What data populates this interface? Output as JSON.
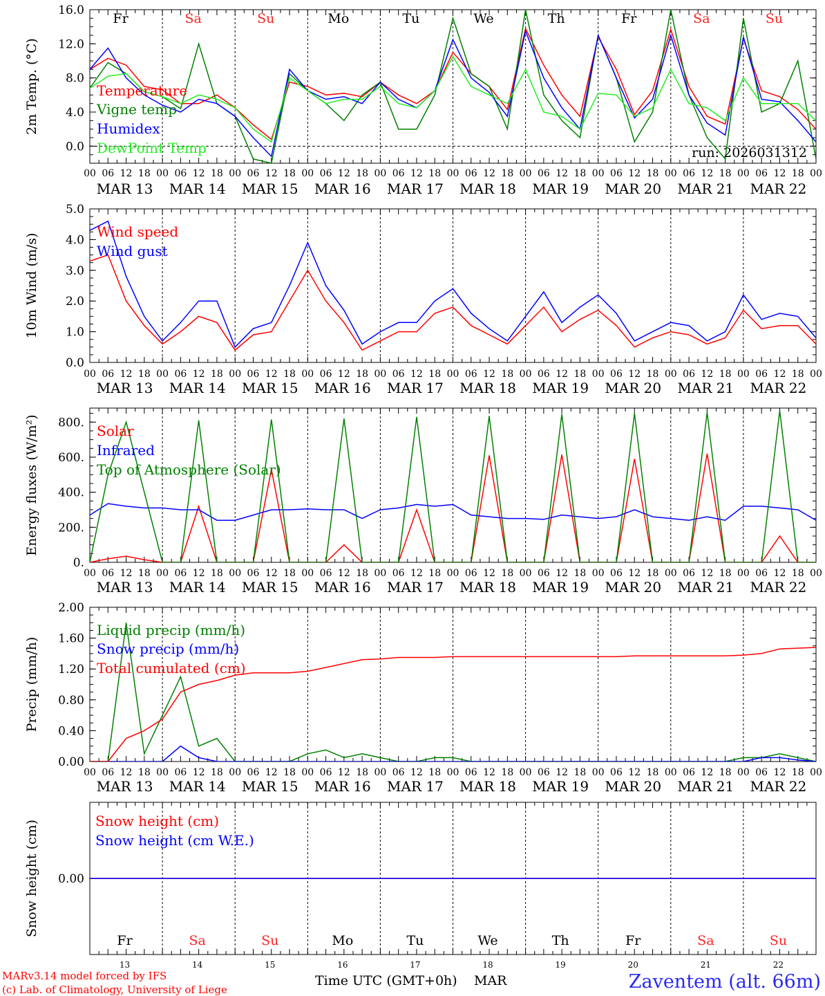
{
  "days": [
    {
      "abbr": "Fr",
      "weekend": false,
      "date": "MAR 13",
      "num": "13"
    },
    {
      "abbr": "Sa",
      "weekend": true,
      "date": "MAR 14",
      "num": "14"
    },
    {
      "abbr": "Su",
      "weekend": true,
      "date": "MAR 15",
      "num": "15"
    },
    {
      "abbr": "Mo",
      "weekend": false,
      "date": "MAR 16",
      "num": "16"
    },
    {
      "abbr": "Tu",
      "weekend": false,
      "date": "MAR 17",
      "num": "17"
    },
    {
      "abbr": "We",
      "weekend": false,
      "date": "MAR 18",
      "num": "18"
    },
    {
      "abbr": "Th",
      "weekend": false,
      "date": "MAR 19",
      "num": "19"
    },
    {
      "abbr": "Fr",
      "weekend": false,
      "date": "MAR 20",
      "num": "20"
    },
    {
      "abbr": "Sa",
      "weekend": true,
      "date": "MAR 21",
      "num": "21"
    },
    {
      "abbr": "Su",
      "weekend": true,
      "date": "MAR 22",
      "num": "22"
    }
  ],
  "hour_labels": [
    "00",
    "06",
    "12",
    "18"
  ],
  "final_hour_label": "00",
  "colors": {
    "red": "#ff0000",
    "green": "#008000",
    "blue": "#0000ff",
    "lightgreen": "#22ee22",
    "weekend": "#ff2222"
  },
  "footer": {
    "model": "MARv3.14 model forced by IFS",
    "lab": "(c) Lab. of Climatology, University of Liege",
    "axis_title": "Time UTC (GMT+0h)",
    "month": "MAR",
    "station": "Zaventem (alt. 66m)"
  },
  "chart_data": [
    {
      "type": "line",
      "ylabel": "2m Temp. (°C)",
      "ylim": [
        -2,
        16
      ],
      "yticks": [
        0,
        4,
        8,
        12,
        16
      ],
      "ytick_labels": [
        "0.0",
        "4.0",
        "8.0",
        "12.0",
        "16.0"
      ],
      "zero_line": true,
      "run_label": "run: 2026031312",
      "x_hours": [
        0,
        6,
        12,
        18,
        24,
        30,
        36,
        42,
        48,
        54,
        60,
        66,
        72,
        78,
        84,
        90,
        96,
        102,
        108,
        114,
        120,
        126,
        132,
        138,
        144,
        150,
        156,
        162,
        168,
        174,
        180,
        186,
        192,
        198,
        204,
        210,
        216,
        222,
        228,
        234,
        240
      ],
      "series": [
        {
          "name": "Temperature",
          "color": "red",
          "values": [
            9,
            10.3,
            9.5,
            7,
            6.6,
            5,
            5,
            6,
            4.5,
            2.5,
            0.8,
            7.5,
            7,
            6,
            6.2,
            5.8,
            7.5,
            6,
            5,
            6.5,
            11,
            8.5,
            7,
            4.3,
            13.8,
            9.5,
            6,
            3.5,
            12.8,
            9,
            3.7,
            6.5,
            13.7,
            7,
            3.5,
            2.6,
            12.6,
            6.5,
            5.8,
            4.3,
            2
          ]
        },
        {
          "name": "Vigne temp",
          "color": "green",
          "values": [
            6.8,
            9.8,
            8.5,
            6.4,
            5.8,
            4.4,
            12,
            5,
            3.5,
            -1.5,
            -2,
            8.5,
            6.5,
            5,
            3,
            6,
            7.5,
            2,
            2,
            6,
            15,
            8.5,
            7,
            2,
            16,
            6,
            3,
            1,
            13,
            8,
            0.5,
            4,
            16,
            6,
            1,
            -1.5,
            15,
            4,
            5,
            10,
            -1.5
          ]
        },
        {
          "name": "Humidex",
          "color": "blue",
          "values": [
            9,
            11.5,
            8,
            6,
            4.8,
            4,
            5.5,
            5,
            3.5,
            1,
            -1.2,
            9,
            6.5,
            5.5,
            5.8,
            5,
            7.5,
            5.5,
            4.5,
            6.5,
            12.5,
            8,
            6.3,
            3.5,
            13.5,
            8,
            4.5,
            2,
            13,
            8,
            3.3,
            5.5,
            13,
            6,
            2.7,
            1.3,
            12.8,
            5.5,
            5.2,
            3,
            0.5
          ]
        },
        {
          "name": "DewPoint Temp",
          "color": "lightgreen",
          "values": [
            6.8,
            8.2,
            8.5,
            6.4,
            5.8,
            5,
            6,
            5.5,
            4.5,
            2,
            0.5,
            8,
            6.5,
            5,
            5.5,
            5.5,
            7,
            5,
            4.5,
            6.5,
            10.5,
            7,
            6,
            5,
            9,
            4,
            3.5,
            2,
            6.2,
            6,
            3.5,
            4.5,
            9,
            5,
            4.5,
            3,
            8,
            5,
            5,
            5,
            3
          ]
        }
      ]
    },
    {
      "type": "line",
      "ylabel": "10m Wind (m/s)",
      "ylim": [
        0,
        5
      ],
      "yticks": [
        0,
        1,
        2,
        3,
        4,
        5
      ],
      "ytick_labels": [
        "0.0",
        "1.0",
        "2.0",
        "3.0",
        "4.0",
        "5.0"
      ],
      "x_hours": [
        0,
        6,
        12,
        18,
        24,
        30,
        36,
        42,
        48,
        54,
        60,
        66,
        72,
        78,
        84,
        90,
        96,
        102,
        108,
        114,
        120,
        126,
        132,
        138,
        144,
        150,
        156,
        162,
        168,
        174,
        180,
        186,
        192,
        198,
        204,
        210,
        216,
        222,
        228,
        234,
        240
      ],
      "series": [
        {
          "name": "Wind speed",
          "color": "red",
          "values": [
            3.3,
            3.5,
            2,
            1.2,
            0.6,
            1,
            1.5,
            1.3,
            0.4,
            0.9,
            1,
            2,
            3,
            2,
            1.3,
            0.4,
            0.7,
            1,
            1,
            1.6,
            1.8,
            1.2,
            0.9,
            0.6,
            1.2,
            1.8,
            1,
            1.4,
            1.7,
            1.2,
            0.5,
            0.8,
            1,
            0.9,
            0.6,
            0.8,
            1.7,
            1.1,
            1.2,
            1.2,
            0.6
          ]
        },
        {
          "name": "Wind gust",
          "color": "blue",
          "values": [
            4.3,
            4.6,
            2.8,
            1.5,
            0.7,
            1.3,
            2,
            2,
            0.5,
            1.1,
            1.3,
            2.5,
            3.9,
            2.5,
            1.7,
            0.6,
            1,
            1.3,
            1.3,
            2,
            2.4,
            1.6,
            1.1,
            0.7,
            1.5,
            2.3,
            1.3,
            1.8,
            2.2,
            1.6,
            0.7,
            1,
            1.3,
            1.2,
            0.7,
            1,
            2.2,
            1.4,
            1.6,
            1.5,
            0.8
          ]
        }
      ]
    },
    {
      "type": "line",
      "ylabel": "Energy fluxes (W/m²)",
      "ylim": [
        0,
        880
      ],
      "yticks": [
        0,
        200,
        400,
        600,
        800
      ],
      "ytick_labels": [
        "0.",
        "200.",
        "400.",
        "600.",
        "800."
      ],
      "x_hours": [
        0,
        6,
        12,
        18,
        24,
        30,
        36,
        42,
        48,
        54,
        60,
        66,
        72,
        78,
        84,
        90,
        96,
        102,
        108,
        114,
        120,
        126,
        132,
        138,
        144,
        150,
        156,
        162,
        168,
        174,
        180,
        186,
        192,
        198,
        204,
        210,
        216,
        222,
        228,
        234,
        240
      ],
      "series": [
        {
          "name": "Solar",
          "color": "red",
          "values": [
            0,
            20,
            35,
            15,
            0,
            0,
            320,
            0,
            0,
            0,
            530,
            0,
            0,
            0,
            100,
            0,
            0,
            0,
            300,
            0,
            0,
            0,
            610,
            0,
            0,
            0,
            615,
            0,
            0,
            0,
            590,
            0,
            0,
            0,
            620,
            0,
            0,
            0,
            150,
            0,
            0
          ]
        },
        {
          "name": "Infrared",
          "color": "blue",
          "values": [
            270,
            335,
            320,
            310,
            310,
            300,
            300,
            240,
            240,
            270,
            300,
            300,
            305,
            300,
            300,
            250,
            300,
            310,
            330,
            320,
            330,
            270,
            260,
            250,
            250,
            245,
            270,
            260,
            250,
            260,
            300,
            260,
            250,
            240,
            260,
            240,
            320,
            320,
            310,
            300,
            240
          ]
        },
        {
          "name": "Top of Atmosphere (Solar)",
          "color": "green",
          "values": [
            0,
            500,
            800,
            400,
            0,
            0,
            810,
            0,
            0,
            0,
            815,
            0,
            0,
            0,
            820,
            0,
            0,
            0,
            830,
            0,
            0,
            0,
            835,
            0,
            0,
            0,
            845,
            0,
            0,
            0,
            850,
            0,
            0,
            0,
            855,
            0,
            0,
            0,
            865,
            0,
            0
          ]
        }
      ]
    },
    {
      "type": "line",
      "ylabel": "Precip (mm/h)",
      "ylim": [
        0,
        2
      ],
      "yticks": [
        0,
        0.4,
        0.8,
        1.2,
        1.6,
        2
      ],
      "ytick_labels": [
        "0.00",
        "0.40",
        "0.80",
        "1.20",
        "1.60",
        "2.00"
      ],
      "x_hours": [
        0,
        6,
        12,
        18,
        24,
        30,
        36,
        42,
        48,
        54,
        60,
        66,
        72,
        78,
        84,
        90,
        96,
        102,
        108,
        114,
        120,
        126,
        132,
        138,
        144,
        150,
        156,
        162,
        168,
        174,
        180,
        186,
        192,
        198,
        204,
        210,
        216,
        222,
        228,
        234,
        240
      ],
      "series": [
        {
          "name": "Liquid precip (mm/h)",
          "color": "green",
          "values": [
            0,
            0,
            1.8,
            0.1,
            0.6,
            1.1,
            0.2,
            0.3,
            0,
            0,
            0,
            0,
            0.1,
            0.15,
            0.05,
            0.1,
            0.05,
            0,
            0,
            0.05,
            0.05,
            0,
            0,
            0,
            0,
            0,
            0,
            0,
            0,
            0,
            0,
            0,
            0,
            0,
            0,
            0,
            0.05,
            0.05,
            0.1,
            0.05,
            0
          ]
        },
        {
          "name": "Snow precip (mm/h)",
          "color": "blue",
          "values": [
            0,
            0,
            0,
            0,
            0,
            0.2,
            0.05,
            0,
            0,
            0,
            0,
            0,
            0,
            0,
            0,
            0,
            0,
            0,
            0,
            0,
            0,
            0,
            0,
            0,
            0,
            0,
            0,
            0,
            0,
            0,
            0,
            0,
            0,
            0,
            0,
            0,
            0,
            0.05,
            0.05,
            0.02,
            0
          ]
        },
        {
          "name": "Total cumulated (cm)",
          "color": "red",
          "values": [
            0,
            0,
            0.3,
            0.4,
            0.55,
            0.9,
            1,
            1.05,
            1.12,
            1.15,
            1.15,
            1.15,
            1.17,
            1.22,
            1.27,
            1.32,
            1.33,
            1.35,
            1.35,
            1.35,
            1.36,
            1.36,
            1.36,
            1.36,
            1.36,
            1.36,
            1.36,
            1.36,
            1.36,
            1.36,
            1.37,
            1.37,
            1.37,
            1.37,
            1.37,
            1.37,
            1.38,
            1.4,
            1.46,
            1.47,
            1.48
          ]
        }
      ]
    },
    {
      "type": "line",
      "ylabel": "Snow height (cm)",
      "ylim": [
        -1,
        1
      ],
      "yticks": [
        0
      ],
      "ytick_labels": [
        "0.00"
      ],
      "x_hours": [
        0,
        240
      ],
      "series": [
        {
          "name": "Snow height (cm)",
          "color": "red",
          "values": [
            0,
            0
          ]
        },
        {
          "name": "Snow height (cm W.E.)",
          "color": "blue",
          "values": [
            0,
            0
          ]
        }
      ]
    }
  ]
}
